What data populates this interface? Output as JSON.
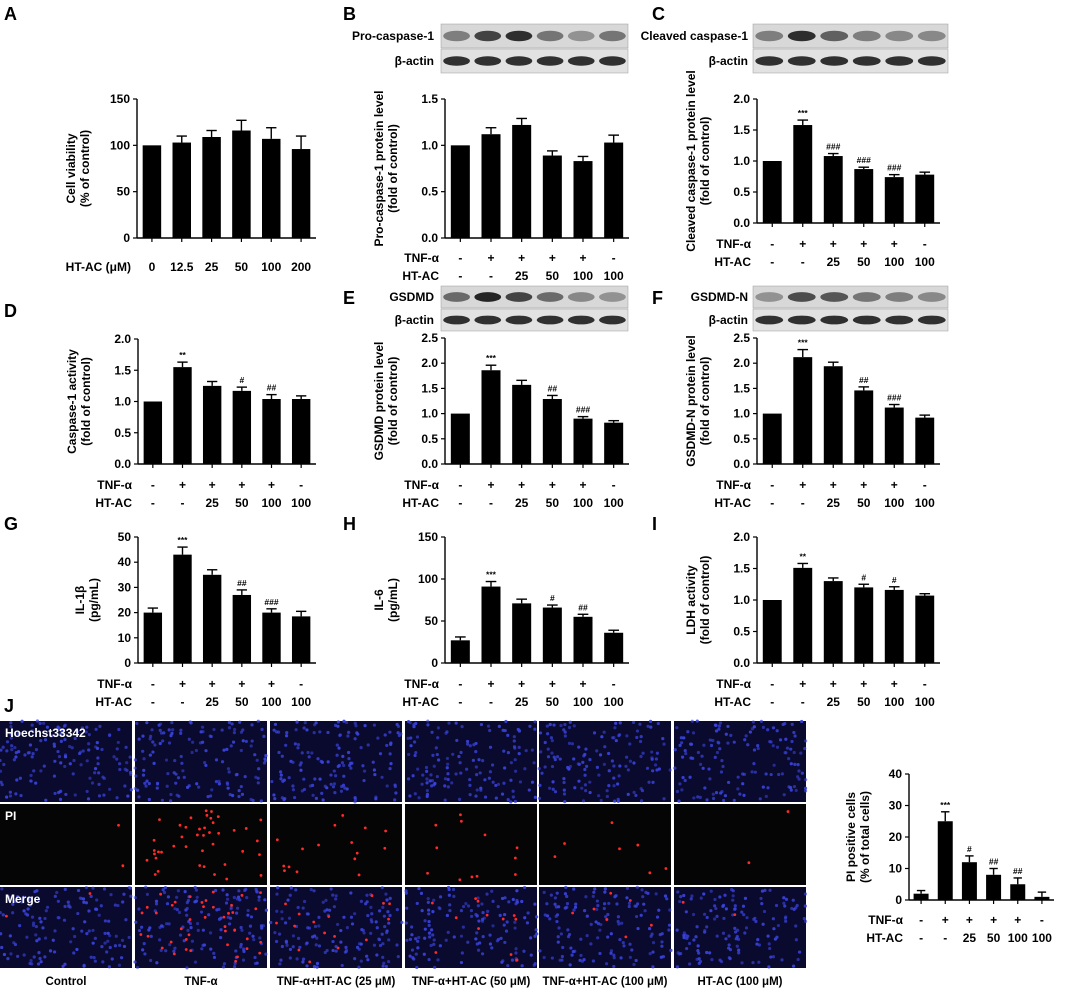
{
  "figure": {
    "panel_letters": [
      "A",
      "B",
      "C",
      "D",
      "E",
      "F",
      "G",
      "H",
      "I",
      "J"
    ],
    "blot_labels": {
      "B": [
        "Pro-caspase-1",
        "β-actin"
      ],
      "C": [
        "Cleaved caspase-1",
        "β-actin"
      ],
      "E": [
        "GSDMD",
        "β-actin"
      ],
      "F": [
        "GSDMD-N",
        "β-actin"
      ]
    },
    "micrograph": {
      "row_labels": [
        "Hoechst33342",
        "PI",
        "Merge"
      ],
      "column_labels": [
        "Control",
        "TNF-α",
        "TNF-α+HT-AC (25 μM)",
        "TNF-α+HT-AC (50 μM)",
        "TNF-α+HT-AC (100 μM)",
        "HT-AC (100 μM)"
      ],
      "colors": {
        "background": "#0a0a2e",
        "nucleus": "#3a44e0",
        "pi": "#ff2a2a"
      },
      "pi_density": [
        0.02,
        0.35,
        0.13,
        0.1,
        0.06,
        0.02
      ]
    },
    "treatment_rows": {
      "row1_label": "TNF-α",
      "row2_label": "HT-AC",
      "row1": [
        "-",
        "+",
        "+",
        "+",
        "+",
        "-"
      ],
      "row2": [
        "-",
        "-",
        "25",
        "50",
        "100",
        "100"
      ]
    },
    "bar_color": "#000000"
  },
  "chart_data": [
    {
      "panel": "A",
      "type": "bar",
      "ylabel": [
        "Cell viability",
        "(% of control)"
      ],
      "xlabel": "HT-AC (μM)",
      "categories": [
        "0",
        "12.5",
        "25",
        "50",
        "100",
        "200"
      ],
      "values": [
        100,
        103,
        109,
        116,
        107,
        96
      ],
      "errors": [
        0,
        7,
        7,
        11,
        12,
        14
      ],
      "annotations": [
        "",
        "",
        "",
        "",
        "",
        ""
      ],
      "ylim": [
        0,
        150
      ],
      "yticks": [
        0,
        50,
        100,
        150
      ]
    },
    {
      "panel": "B",
      "type": "bar",
      "ylabel": [
        "Pro-caspase-1 protein level",
        "(fold of control)"
      ],
      "values": [
        1.0,
        1.12,
        1.22,
        0.89,
        0.83,
        1.03
      ],
      "errors": [
        0,
        0.07,
        0.07,
        0.05,
        0.05,
        0.08
      ],
      "annotations": [
        "",
        "",
        "",
        "",
        "",
        ""
      ],
      "ylim": [
        0,
        1.5
      ],
      "yticks": [
        0.0,
        0.5,
        1.0,
        1.5
      ],
      "decimals": 1
    },
    {
      "panel": "C",
      "type": "bar",
      "ylabel": [
        "Cleaved caspase-1 protein level",
        "(fold of control)"
      ],
      "values": [
        1.0,
        1.58,
        1.08,
        0.87,
        0.74,
        0.78
      ],
      "errors": [
        0,
        0.08,
        0.04,
        0.03,
        0.04,
        0.04
      ],
      "annotations": [
        "",
        "***",
        "###",
        "###",
        "###",
        ""
      ],
      "ylim": [
        0,
        2.0
      ],
      "yticks": [
        0.0,
        0.5,
        1.0,
        1.5,
        2.0
      ],
      "decimals": 1
    },
    {
      "panel": "D",
      "type": "bar",
      "ylabel": [
        "Caspase-1 activity",
        "(fold of control)"
      ],
      "values": [
        1.0,
        1.55,
        1.25,
        1.17,
        1.04,
        1.04
      ],
      "errors": [
        0,
        0.08,
        0.07,
        0.06,
        0.07,
        0.05
      ],
      "annotations": [
        "",
        "**",
        "",
        "#",
        "##",
        ""
      ],
      "ylim": [
        0,
        2.0
      ],
      "yticks": [
        0.0,
        0.5,
        1.0,
        1.5,
        2.0
      ],
      "decimals": 1
    },
    {
      "panel": "E",
      "type": "bar",
      "ylabel": [
        "GSDMD protein level",
        "(fold of control)"
      ],
      "values": [
        1.0,
        1.86,
        1.57,
        1.29,
        0.9,
        0.82
      ],
      "errors": [
        0,
        0.1,
        0.09,
        0.07,
        0.04,
        0.04
      ],
      "annotations": [
        "",
        "***",
        "",
        "##",
        "###",
        ""
      ],
      "ylim": [
        0,
        2.5
      ],
      "yticks": [
        0.0,
        0.5,
        1.0,
        1.5,
        2.0,
        2.5
      ],
      "decimals": 1
    },
    {
      "panel": "F",
      "type": "bar",
      "ylabel": [
        "GSDMD-N protein level",
        "(fold of control)"
      ],
      "values": [
        1.0,
        2.12,
        1.94,
        1.46,
        1.12,
        0.92
      ],
      "errors": [
        0,
        0.15,
        0.08,
        0.07,
        0.06,
        0.05
      ],
      "annotations": [
        "",
        "***",
        "",
        "##",
        "###",
        ""
      ],
      "ylim": [
        0,
        2.5
      ],
      "yticks": [
        0.0,
        0.5,
        1.0,
        1.5,
        2.0,
        2.5
      ],
      "decimals": 1
    },
    {
      "panel": "G",
      "type": "bar",
      "ylabel": [
        "IL-1β",
        "(pg/mL)"
      ],
      "values": [
        20,
        43,
        35,
        27,
        20,
        18.5
      ],
      "errors": [
        1.8,
        3,
        2,
        2,
        1.5,
        2
      ],
      "annotations": [
        "",
        "***",
        "",
        "##",
        "###",
        ""
      ],
      "ylim": [
        0,
        50
      ],
      "yticks": [
        0,
        10,
        20,
        30,
        40,
        50
      ]
    },
    {
      "panel": "H",
      "type": "bar",
      "ylabel": [
        "IL-6",
        "(pg/mL)"
      ],
      "values": [
        27,
        91,
        71,
        66,
        55,
        36
      ],
      "errors": [
        4,
        6,
        5,
        3,
        3,
        3
      ],
      "annotations": [
        "",
        "***",
        "",
        "#",
        "##",
        ""
      ],
      "ylim": [
        0,
        150
      ],
      "yticks": [
        0,
        50,
        100,
        150
      ]
    },
    {
      "panel": "I",
      "type": "bar",
      "ylabel": [
        "LDH activity",
        "(fold of control)"
      ],
      "values": [
        1.0,
        1.51,
        1.3,
        1.2,
        1.16,
        1.07
      ],
      "errors": [
        0,
        0.07,
        0.05,
        0.05,
        0.05,
        0.03
      ],
      "annotations": [
        "",
        "**",
        "",
        "#",
        "#",
        ""
      ],
      "ylim": [
        0,
        2.0
      ],
      "yticks": [
        0.0,
        0.5,
        1.0,
        1.5,
        2.0
      ],
      "decimals": 1
    },
    {
      "panel": "J",
      "type": "bar",
      "ylabel": [
        "PI positive cells",
        "(% of total cells)"
      ],
      "values": [
        2,
        25,
        12,
        8,
        5,
        1
      ],
      "errors": [
        1,
        3,
        2,
        2,
        2,
        1.5
      ],
      "annotations": [
        "",
        "***",
        "#",
        "##",
        "##",
        ""
      ],
      "ylim": [
        0,
        40
      ],
      "yticks": [
        0,
        10,
        20,
        30,
        40
      ]
    }
  ]
}
